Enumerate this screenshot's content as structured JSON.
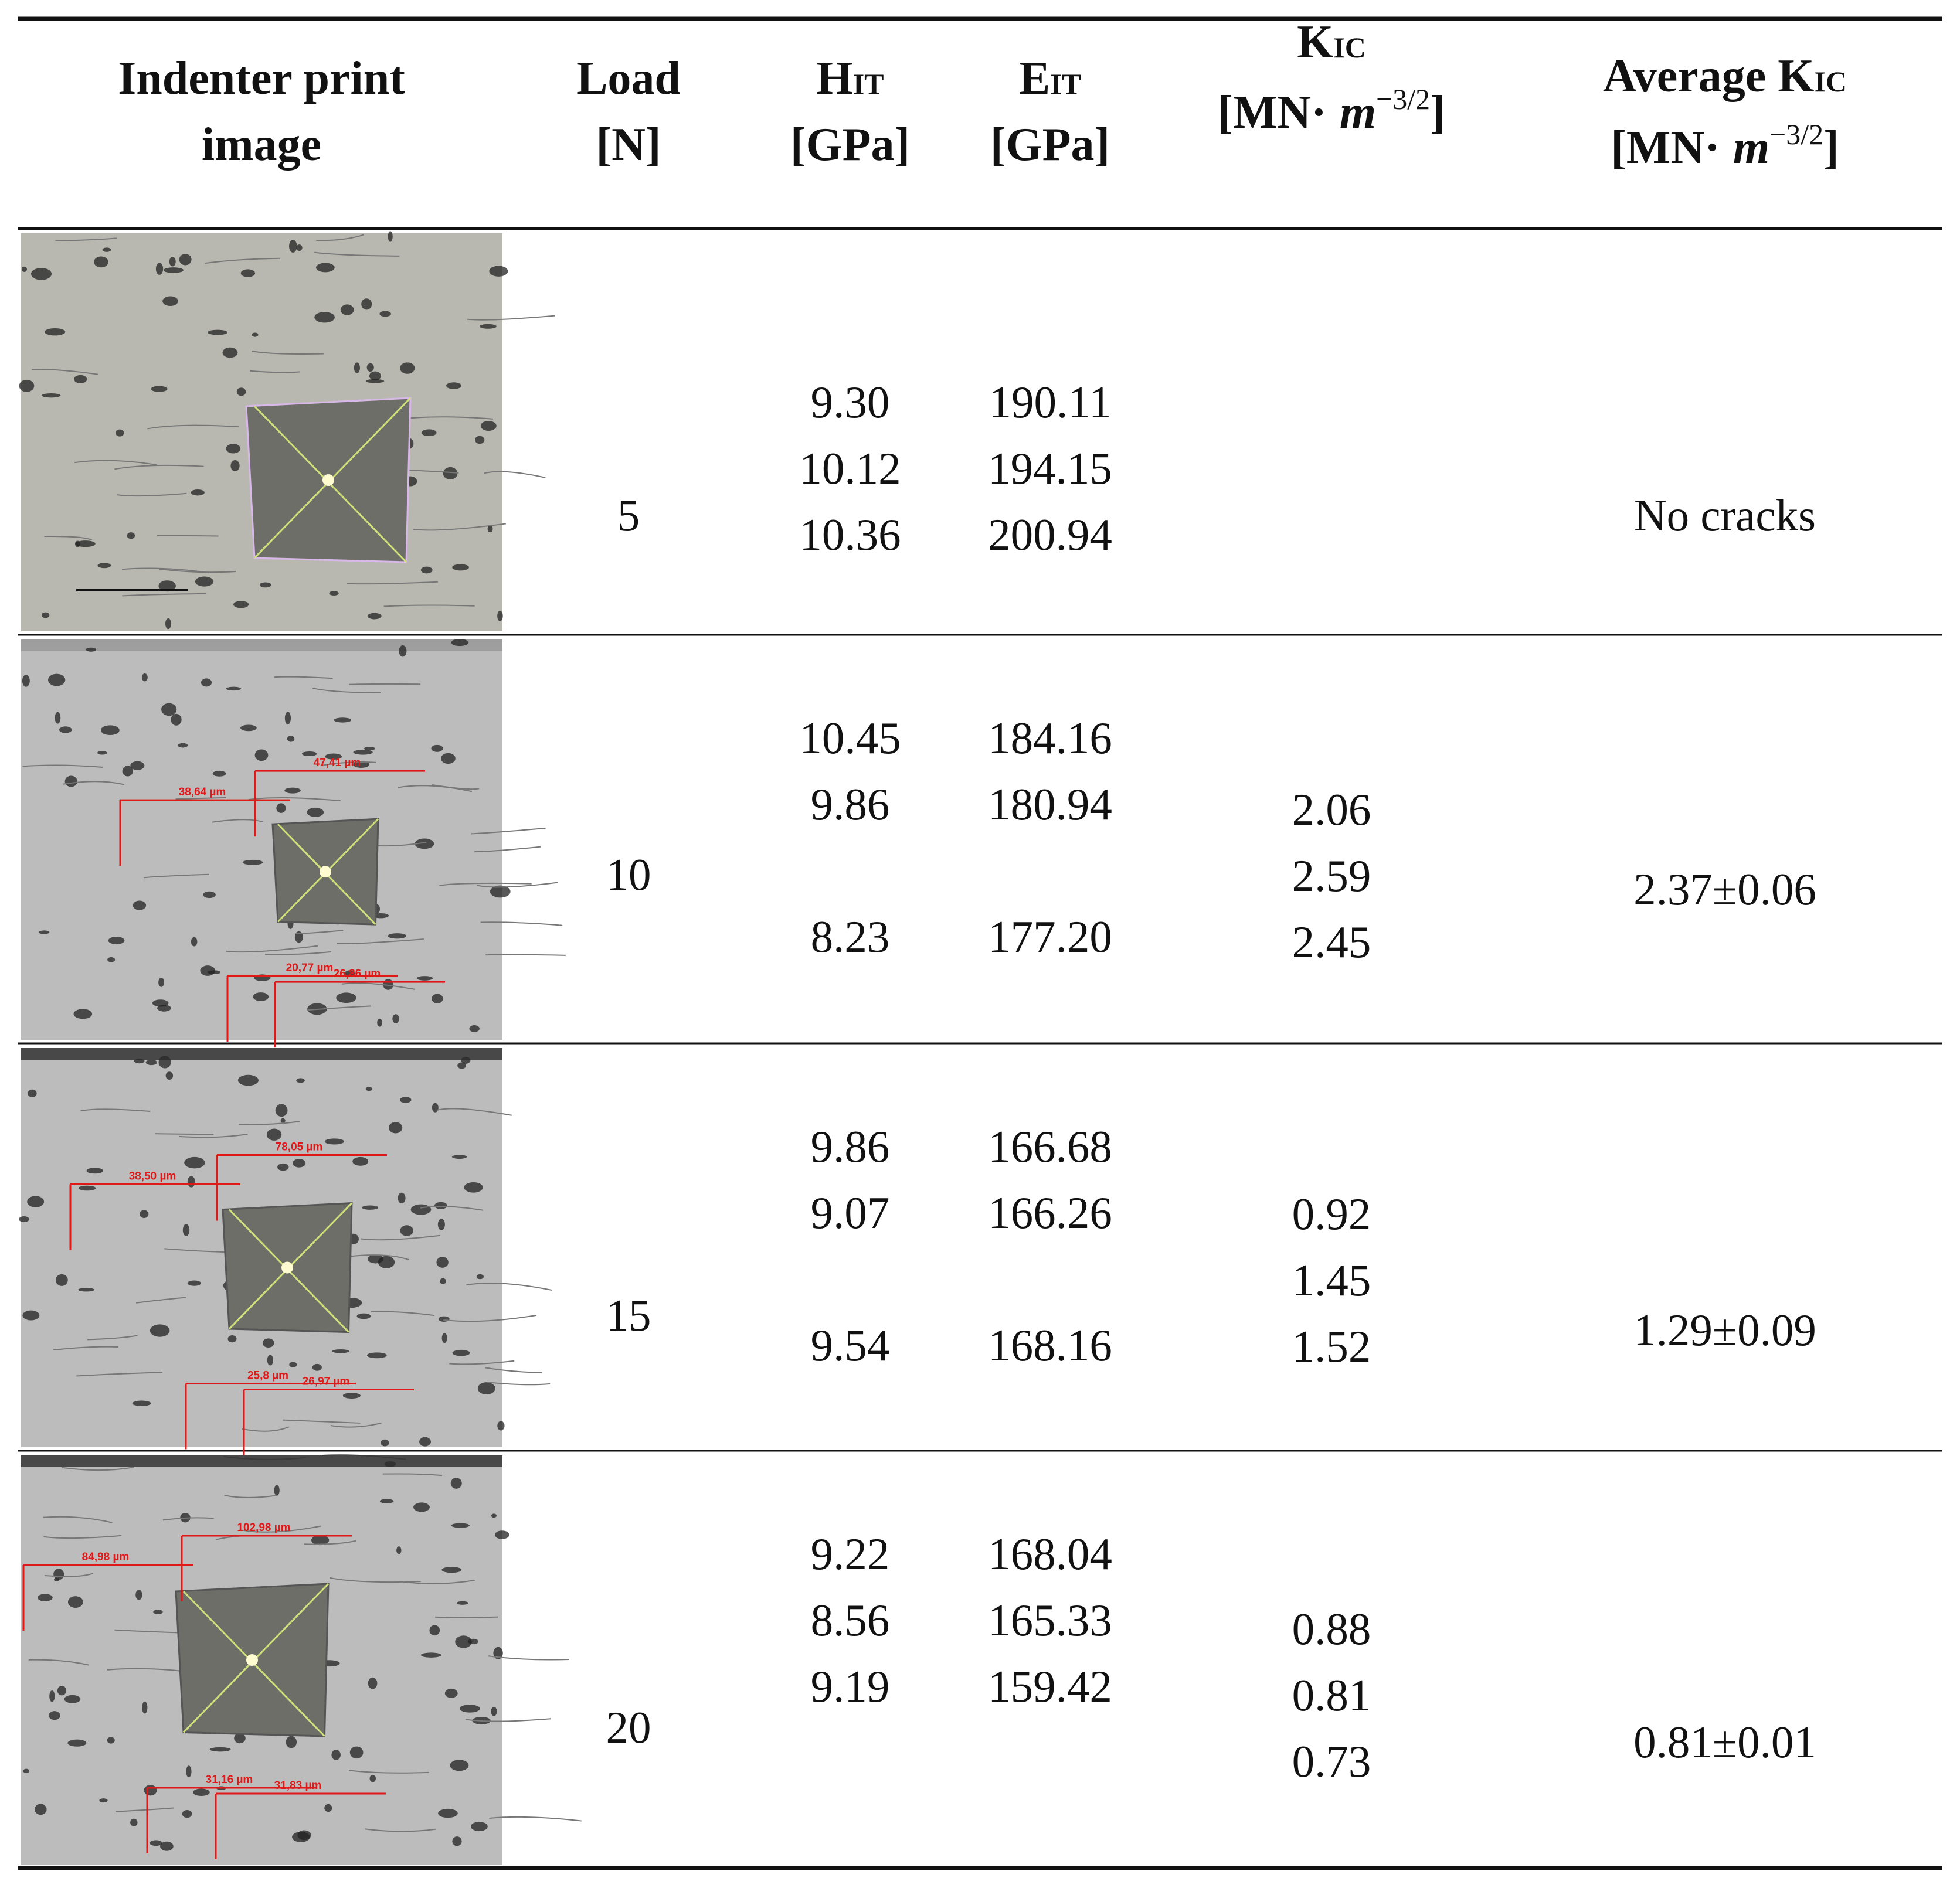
{
  "header": [
    {
      "lines": [
        "Indenter print",
        "image"
      ]
    },
    {
      "lines": [
        "Load",
        "[N]"
      ]
    },
    {
      "symbol": "H",
      "sub": "IT",
      "unit": "[GPa]"
    },
    {
      "symbol": "E",
      "sub": "IT",
      "unit": "[GPa]"
    },
    {
      "symbol": "K",
      "sub": "IC",
      "unit": {
        "pre": "[MN·",
        "var": "m",
        "exp": "−3/2",
        "post": "]"
      }
    },
    {
      "prefix": "Average",
      "symbol": "K",
      "sub": "IC",
      "unit": {
        "pre": "[MN·",
        "var": "m",
        "exp": "−3/2",
        "post": "]"
      }
    }
  ],
  "rows": [
    {
      "image_labels": [],
      "load": "5",
      "hit": [
        "9.30",
        "10.12",
        "10.36"
      ],
      "eit": [
        "190.11",
        "194.15",
        "200.94"
      ],
      "kic": [],
      "average": "No cracks"
    },
    {
      "image_labels": [
        "47,41 µm",
        "38,64 µm",
        "20,77 µm",
        "26,86 µm"
      ],
      "load": "10",
      "hit": [
        "10.45",
        "9.86",
        null,
        "8.23"
      ],
      "eit": [
        "184.16",
        "180.94",
        null,
        "177.20"
      ],
      "kic": [
        "2.06",
        "2.59",
        "2.45"
      ],
      "average": "2.37±0.06"
    },
    {
      "image_labels": [
        "78,05 µm",
        "38,50 µm",
        "25,8 µm",
        "26,97 µm"
      ],
      "load": "15",
      "hit": [
        "9.86",
        "9.07",
        null,
        "9.54"
      ],
      "eit": [
        "166.68",
        "166.26",
        null,
        "168.16"
      ],
      "kic": [
        "0.92",
        "1.45",
        "1.52"
      ],
      "average": "1.29±0.09"
    },
    {
      "image_labels": [
        "102,98 µm",
        "84,98 µm",
        "31,16 µm",
        "31,83 µm"
      ],
      "load": "20",
      "hit": [
        "9.22",
        "8.56",
        "9.19"
      ],
      "eit": [
        "168.04",
        "165.33",
        "159.42"
      ],
      "kic": [
        "0.88",
        "0.81",
        "0.73"
      ],
      "average": "0.81±0.01"
    }
  ]
}
